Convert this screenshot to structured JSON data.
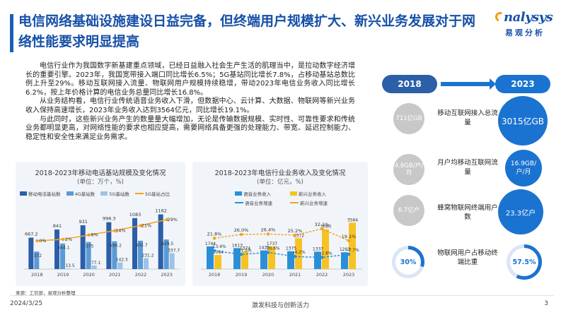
{
  "title": "电信网络基础设施建设日益完备，但终端用户规模扩大、新兴业务发展对于网络性能要求明显提高",
  "logo": {
    "en": "nalysys",
    "cn": "易观分析",
    "colors": {
      "brand": "#1650a8",
      "accent": "#f39c12"
    }
  },
  "body": {
    "p1": "电信行业作为我国数字新基建重点领域，已经日益融入社会生产生活的肌理当中，是拉动数字经济增长的重要引擎。2023年，我国宽带接入端口同比增长6.5%；5G基站同比增长7.8%，占移动基站总数比例上升至29%。移动互联网接入流量、物联网用户规模持续稳增，带动2023年电信业务收入同比增长6.2%，按上年价格计算的电信业务总量同比增长16.8%。",
    "p2": "从业务结构看，电信行业传统语音业务收入下滑，但数据中心、云计算、大数据、物联网等新兴业务收入保持高速增长，2023年业务收入达到3564亿元，同比增长19.1%。",
    "p3": "与此同时，这些新兴业务产生的数量量大幅增加，无论是传输数据规模、实时性、可靠性要求和传统业务都明显更高，对网络性能的要求也相应提高，需要网络具备更强的处理能力、带宽、延迟控制能力、稳定性和安全性来满足业务需求。"
  },
  "chart_data": [
    {
      "type": "bar",
      "title": "2018-2023年移动电话基站规模及变化情况",
      "unit": "(单位：万个，%)",
      "categories": [
        "2018",
        "2019",
        "2020",
        "2021",
        "2022",
        "2023"
      ],
      "series": [
        {
          "name": "移动电话基站数",
          "kind": "bar",
          "color": "#2b5fa8",
          "values": [
            667.2,
            841,
            931,
            996.3,
            1083,
            1162
          ]
        },
        {
          "name": "4G基站数",
          "kind": "bar",
          "color": "#5b9bd5",
          "values": [
            372,
            544.1,
            575,
            590.2,
            602.7,
            629.5
          ]
        },
        {
          "name": "5G基站数",
          "kind": "bar",
          "color": "#9dc3e6",
          "values": [
            0,
            13.5,
            77.1,
            142.5,
            231.2,
            337.7
          ]
        },
        {
          "name": "5G基站占比",
          "kind": "line",
          "color": "#f4a21e",
          "values": [
            0,
            2,
            8,
            14,
            21,
            29
          ]
        }
      ],
      "value_labels": {
        "total": [
          "667.2",
          "841",
          "931",
          "996.3",
          "1083",
          "1162"
        ],
        "g4": [
          "372",
          "544.1",
          "575",
          "590.2",
          "602.7",
          "629.5"
        ],
        "g5": [
          "",
          "13.5",
          "77.1",
          "142.5",
          "231.2",
          "337.7"
        ],
        "ratio": [
          "0%",
          "2%",
          "8%",
          "14%",
          "21%",
          "29%"
        ]
      }
    },
    {
      "type": "bar",
      "title": "2018-2023年电信行业业务收入及变化情况",
      "unit": "(单位：亿元，%)",
      "categories": [
        "2018",
        "2019",
        "2020",
        "2021",
        "2022",
        "2023"
      ],
      "series": [
        {
          "name": "语音业务收入",
          "kind": "bar",
          "color": "#2b8fd8",
          "values": [
            1744,
            1613,
            1435,
            1375,
            1337,
            1293
          ]
        },
        {
          "name": "新兴业务收入",
          "kind": "bar",
          "color": "#f7c223",
          "values": [
            1084,
            1374,
            1737,
            2372,
            3060,
            3564
          ]
        },
        {
          "name": "语音业务增速",
          "kind": "line",
          "color": "#2b8fd8",
          "values": [
            -13.4,
            -7.5,
            -10.6,
            -4.2,
            -2.8,
            -7.7
          ]
        },
        {
          "name": "新兴业务增速",
          "kind": "line",
          "color": "#f4a21e",
          "values": [
            21.8,
            26.0,
            26.4,
            25.2,
            32.1,
            19.1
          ]
        }
      ],
      "value_labels": {
        "voice": [
          "1744",
          "1613",
          "1435",
          "1375",
          "1337",
          "1293"
        ],
        "new": [
          "1084",
          "1374",
          "1737",
          "2372",
          "3060",
          "3564"
        ],
        "voice_rate": [
          "-13.4%",
          "-7.5%",
          "-10.6%",
          "-4.2%",
          "-2.8%",
          "-7.7%"
        ],
        "new_rate": [
          "21.8%",
          "26.0%",
          "26.4%",
          "25.2%",
          "32.1%",
          "19.1%"
        ]
      }
    }
  ],
  "compare": {
    "year_left": "2018",
    "year_right": "2023",
    "rows": [
      {
        "left": "711亿GB",
        "label": "移动互联网接入总流量",
        "right": "3015亿GB"
      },
      {
        "left": "4.6GB/户/月",
        "label": "月户均移动互联网流量",
        "right": "16.9GB/户/月"
      },
      {
        "left": "6.7亿户",
        "label": "蜂窝物联网终端用户数",
        "right": "23.3亿户"
      }
    ],
    "ratio": {
      "left": "30%",
      "label": "物联网用户占移动终端比重",
      "right": "57.5%",
      "left_value": 30,
      "right_value": 57.5
    }
  },
  "source": "来源：工信部，易观分析整理",
  "footer": {
    "date": "2024/3/25",
    "center": "激发科技与创新活力",
    "page": "3"
  }
}
